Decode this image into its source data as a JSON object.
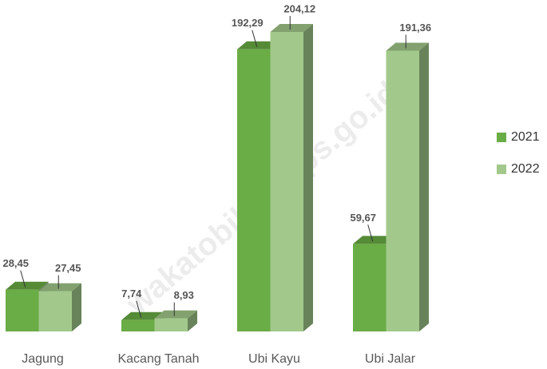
{
  "chart_data": {
    "type": "bar3d",
    "categories": [
      "Jagung",
      "Kacang Tanah",
      "Ubi Kayu",
      "Ubi Jalar"
    ],
    "series": [
      {
        "name": "2021",
        "color": "#6aac45",
        "values": [
          28.45,
          7.74,
          192.29,
          59.67
        ],
        "value_labels": [
          "28,45",
          "7,74",
          "192,29",
          "59,67"
        ]
      },
      {
        "name": "2022",
        "color": "#a2c98b",
        "values": [
          27.45,
          8.93,
          204.12,
          191.36
        ],
        "value_labels": [
          "27,45",
          "8,93",
          "204,12",
          "191,36"
        ]
      }
    ],
    "legend": "right",
    "watermark": "wakatobikab.bps.go.id"
  }
}
